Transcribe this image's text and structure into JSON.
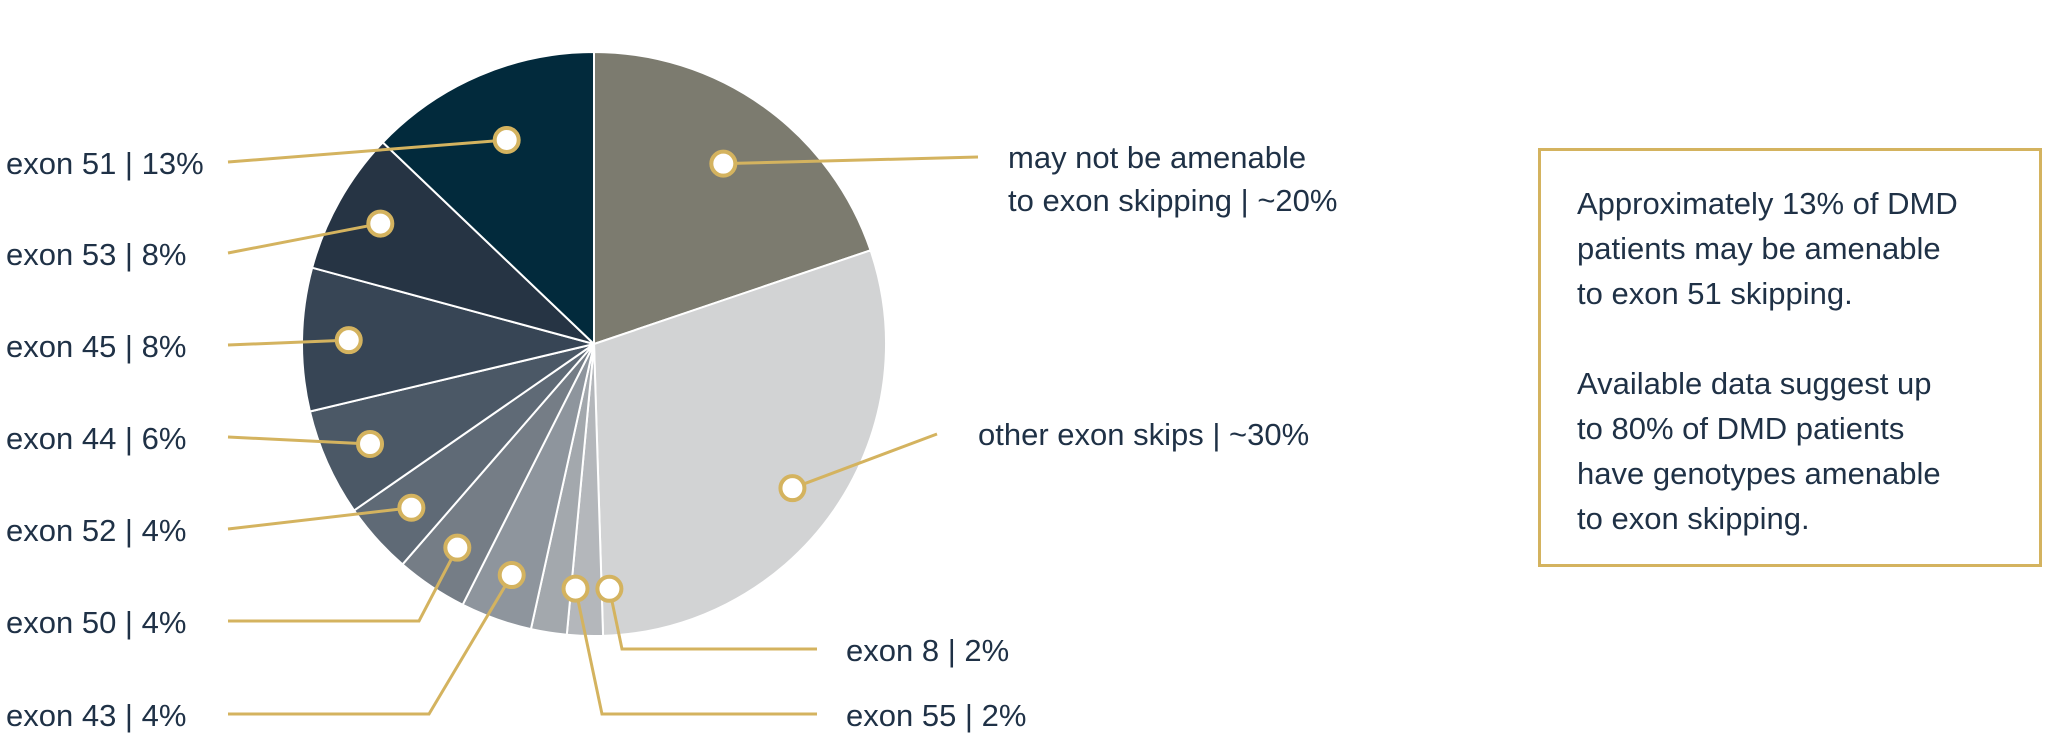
{
  "chart_data": {
    "type": "pie",
    "start": "12 o'clock, clockwise",
    "slices": [
      {
        "label_lines": [
          "may not be amenable",
          "to exon skipping | ~20%"
        ],
        "value": 20,
        "color": "#7c7b6f"
      },
      {
        "label_lines": [
          "other exon skips | ~30%"
        ],
        "value": 30,
        "color": "#d2d3d4"
      },
      {
        "label_lines": [
          "exon 8 | 2%"
        ],
        "value": 2,
        "color": "#b4b7bb"
      },
      {
        "label_lines": [
          "exon 55 | 2%"
        ],
        "value": 2,
        "color": "#a3a8ad"
      },
      {
        "label_lines": [
          "exon 43 | 4%"
        ],
        "value": 4,
        "color": "#8e959d"
      },
      {
        "label_lines": [
          "exon 50 | 4%"
        ],
        "value": 4,
        "color": "#757d86"
      },
      {
        "label_lines": [
          "exon 52 | 4%"
        ],
        "value": 4,
        "color": "#5f6a76"
      },
      {
        "label_lines": [
          "exon 44 | 6%"
        ],
        "value": 6,
        "color": "#4b5866"
      },
      {
        "label_lines": [
          "exon 45 | 8%"
        ],
        "value": 8,
        "color": "#374555"
      },
      {
        "label_lines": [
          "exon 53 | 8%"
        ],
        "value": 8,
        "color": "#263444"
      },
      {
        "label_lines": [
          "exon 51 | 13%"
        ],
        "value": 13,
        "color": "#022a3c"
      }
    ],
    "legend": "callout labels",
    "colors": {
      "callout": "#d4b35f",
      "text": "#1f3146"
    }
  },
  "info_box": {
    "paragraph_1": "Approximately 13% of DMD\npatients may be amenable\nto exon 51 skipping.",
    "paragraph_2": "Available data suggest up\nto 80% of DMD patients\nhave genotypes amenable\nto exon skipping."
  }
}
